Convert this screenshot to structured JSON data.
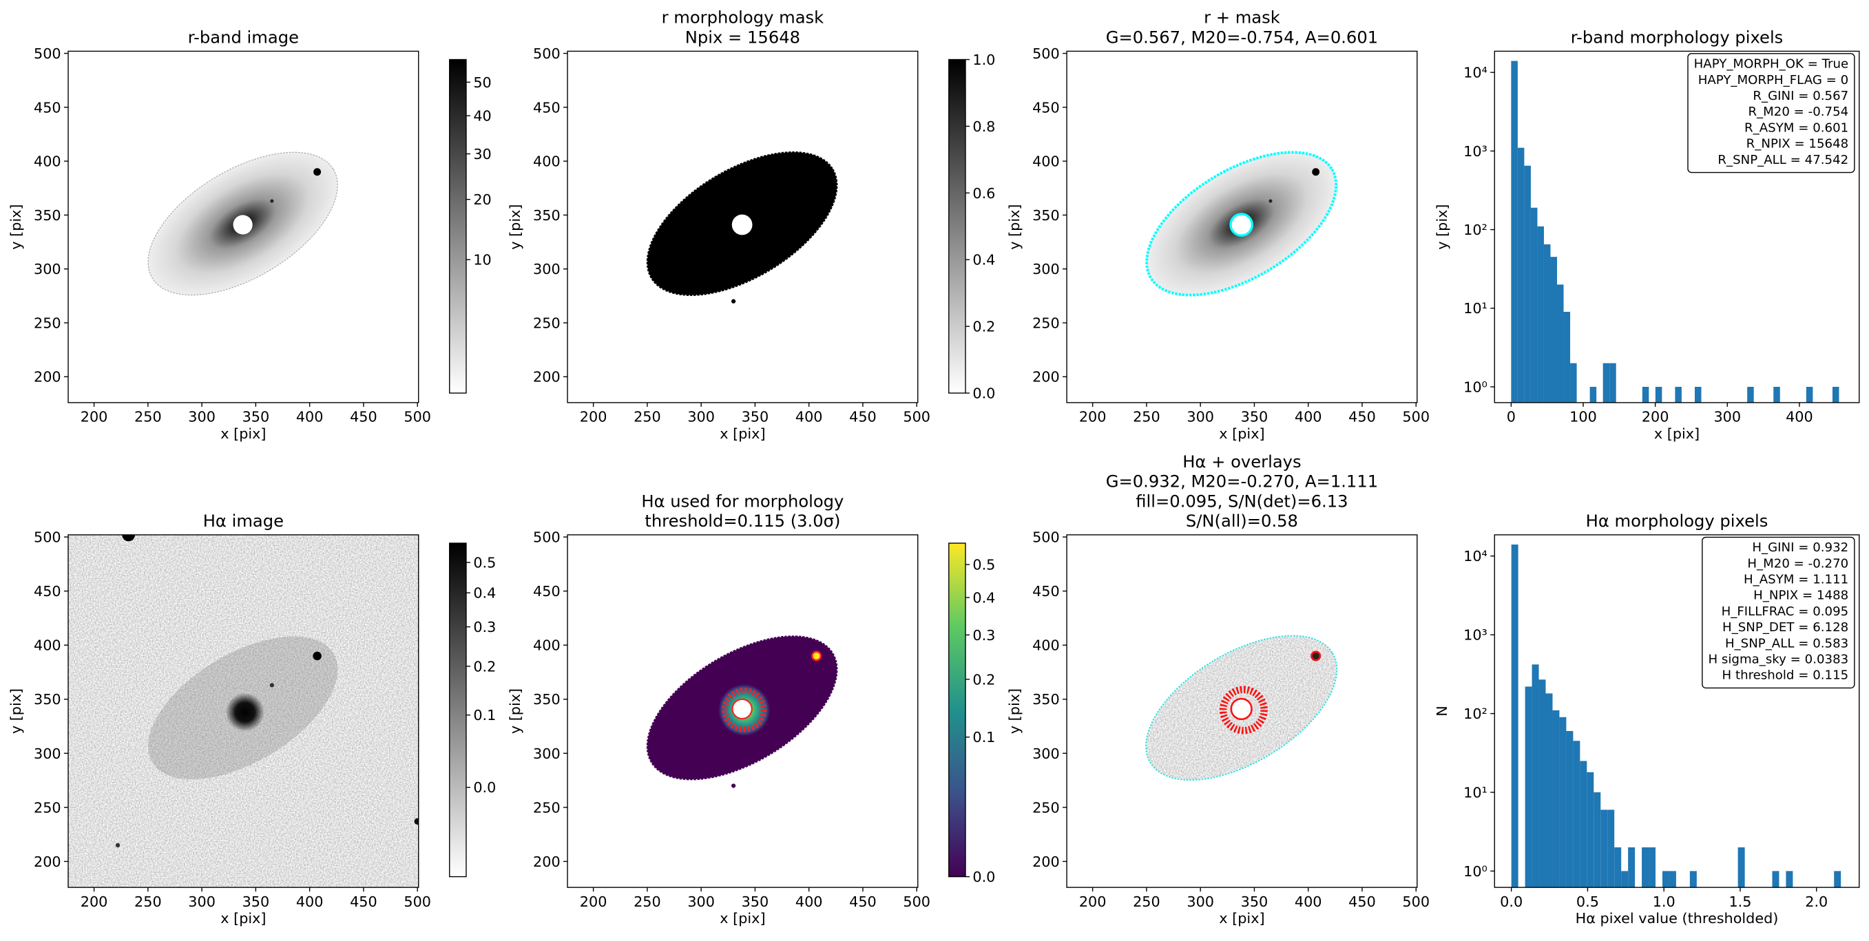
{
  "chart_data": [
    {
      "type": "image",
      "title": [
        "r-band image"
      ],
      "xlabel": "x [pix]",
      "ylabel": "y [pix]",
      "xlim": [
        176,
        501
      ],
      "ylim": [
        176,
        502
      ],
      "xticks": [
        200,
        250,
        300,
        350,
        400,
        450,
        500
      ],
      "yticks": [
        200,
        250,
        300,
        350,
        400,
        450,
        500
      ],
      "colorbar": {
        "cmap": "gray_r",
        "scale": "sqrt",
        "clim": [
          0.97,
          57.4
        ],
        "ticks": [
          10,
          20,
          30,
          40,
          50
        ]
      }
    },
    {
      "type": "image",
      "title": [
        "r morphology mask",
        "Npix = 15648"
      ],
      "xlabel": "x [pix]",
      "ylabel": "y [pix]",
      "xlim": [
        176,
        501
      ],
      "ylim": [
        176,
        502
      ],
      "xticks": [
        200,
        250,
        300,
        350,
        400,
        450,
        500
      ],
      "yticks": [
        200,
        250,
        300,
        350,
        400,
        450,
        500
      ],
      "colorbar": {
        "cmap": "gray_r",
        "scale": "linear",
        "clim": [
          0,
          1
        ],
        "ticks": [
          {
            "value": 0,
            "label": "0.0"
          },
          0.2,
          0.4,
          0.6,
          0.8,
          {
            "value": 1,
            "label": "1.0"
          }
        ]
      }
    },
    {
      "type": "image",
      "title": [
        "r + mask",
        "G=0.567, M20=-0.754, A=0.601"
      ],
      "xlabel": "x [pix]",
      "ylabel": "y [pix]",
      "xlim": [
        176,
        501
      ],
      "ylim": [
        176,
        502
      ],
      "xticks": [
        200,
        250,
        300,
        350,
        400,
        450,
        500
      ],
      "yticks": [
        200,
        250,
        300,
        350,
        400,
        450,
        500
      ]
    },
    {
      "type": "histogram",
      "title": [
        "r-band morphology pixels"
      ],
      "xlabel": "x [pix]",
      "ylabel": "y [pix]",
      "xlim": [
        -23,
        483
      ],
      "ylim": [
        0.63,
        18600
      ],
      "yscale": "log",
      "color": "#1f77b4",
      "xticks": [
        0,
        100,
        200,
        300,
        400
      ],
      "yticks": [
        {
          "value": 1,
          "label": "10⁰"
        },
        {
          "value": 10,
          "label": "10¹"
        },
        {
          "value": 100,
          "label": "10²"
        },
        {
          "value": 1000,
          "label": "10³"
        },
        {
          "value": 10000,
          "label": "10⁴"
        }
      ],
      "bins": [
        0,
        9.1,
        18.2,
        27.3,
        36.4,
        45.5,
        54.6,
        63.7,
        72.8,
        81.9,
        91,
        100.1,
        109.2,
        118.3,
        127.4,
        136.5,
        145.6,
        154.7,
        163.8,
        172.9,
        182,
        191.1,
        200.2,
        209.3,
        218.4,
        227.5,
        236.6,
        245.7,
        254.8,
        263.9,
        273,
        282.1,
        291.2,
        300.3,
        309.4,
        318.5,
        327.6,
        336.7,
        345.8,
        354.9,
        364,
        373.1,
        382.2,
        391.3,
        400.4,
        409.5,
        418.6,
        427.7,
        436.8,
        445.9,
        455
      ],
      "counts": [
        14000,
        1100,
        650,
        190,
        110,
        65,
        45,
        20,
        9,
        2,
        0,
        0,
        1,
        0,
        2,
        2,
        0,
        0,
        0,
        0,
        1,
        0,
        1,
        0,
        0,
        1,
        0,
        0,
        1,
        0,
        0,
        0,
        0,
        0,
        0,
        0,
        1,
        0,
        0,
        0,
        1,
        0,
        0,
        0,
        0,
        1,
        0,
        0,
        0,
        1
      ],
      "annotation": [
        "HAPY_MORPH_OK = True",
        "HAPY_MORPH_FLAG = 0",
        "R_GINI = 0.567",
        "R_M20 = -0.754",
        "R_ASYM = 0.601",
        "R_NPIX = 15648",
        "R_SNP_ALL = 47.542"
      ]
    },
    {
      "type": "image",
      "title": [
        "Hα image"
      ],
      "xlabel": "x [pix]",
      "ylabel": "y [pix]",
      "xlim": [
        176,
        501
      ],
      "ylim": [
        176,
        502
      ],
      "xticks": [
        200,
        250,
        300,
        350,
        400,
        450,
        500
      ],
      "yticks": [
        200,
        250,
        300,
        350,
        400,
        450,
        500
      ],
      "colorbar": {
        "cmap": "gray_r",
        "scale": "sqrt",
        "clim": [
          -0.044,
          0.569
        ],
        "ticks": [
          {
            "value": 0,
            "label": "0.0"
          },
          0.1,
          0.2,
          0.3,
          0.4,
          0.5
        ]
      }
    },
    {
      "type": "image",
      "title": [
        "Hα used for morphology",
        "threshold=0.115 (3.0σ)"
      ],
      "xlabel": "x [pix]",
      "ylabel": "y [pix]",
      "xlim": [
        176,
        501
      ],
      "ylim": [
        176,
        502
      ],
      "xticks": [
        200,
        250,
        300,
        350,
        400,
        450,
        500
      ],
      "yticks": [
        200,
        250,
        300,
        350,
        400,
        450,
        500
      ],
      "colorbar": {
        "cmap": "viridis",
        "scale": "sqrt",
        "clim": [
          0,
          0.571
        ],
        "ticks": [
          {
            "value": 0,
            "label": "0.0"
          },
          0.1,
          0.2,
          0.3,
          0.4,
          0.5
        ]
      }
    },
    {
      "type": "image",
      "title": [
        "Hα + overlays",
        "G=0.932, M20=-0.270, A=1.111",
        "fill=0.095, S/N(det)=6.13",
        "S/N(all)=0.58"
      ],
      "xlabel": "x [pix]",
      "ylabel": "y [pix]",
      "xlim": [
        176,
        501
      ],
      "ylim": [
        176,
        502
      ],
      "xticks": [
        200,
        250,
        300,
        350,
        400,
        450,
        500
      ],
      "yticks": [
        200,
        250,
        300,
        350,
        400,
        450,
        500
      ]
    },
    {
      "type": "histogram",
      "title": [
        "Hα morphology pixels"
      ],
      "xlabel": "Hα pixel value (thresholded)",
      "ylabel": "N",
      "xlim": [
        -0.11,
        2.28
      ],
      "ylim": [
        0.62,
        18600
      ],
      "yscale": "log",
      "color": "#1f77b4",
      "xticks": [
        {
          "value": 0,
          "label": "0.0"
        },
        0.5,
        {
          "value": 1,
          "label": "1.0"
        },
        1.5,
        {
          "value": 2,
          "label": "2.0"
        }
      ],
      "yticks": [
        {
          "value": 1,
          "label": "10⁰"
        },
        {
          "value": 10,
          "label": "10¹"
        },
        {
          "value": 100,
          "label": "10²"
        },
        {
          "value": 1000,
          "label": "10³"
        },
        {
          "value": 10000,
          "label": "10⁴"
        }
      ],
      "bins": [
        0,
        0.045,
        0.09,
        0.135,
        0.18,
        0.225,
        0.27,
        0.315,
        0.36,
        0.405,
        0.45,
        0.495,
        0.54,
        0.585,
        0.63,
        0.675,
        0.72,
        0.765,
        0.81,
        0.855,
        0.9,
        0.945,
        0.99,
        1.035,
        1.08,
        1.125,
        1.17,
        1.215,
        1.26,
        1.305,
        1.35,
        1.395,
        1.44,
        1.485,
        1.53,
        1.575,
        1.62,
        1.665,
        1.71,
        1.755,
        1.8,
        1.845,
        1.89,
        1.935,
        1.98,
        2.025,
        2.07,
        2.115,
        2.16
      ],
      "counts": [
        14000,
        0,
        220,
        420,
        270,
        180,
        110,
        90,
        60,
        45,
        25,
        18,
        10,
        6,
        6,
        2,
        1,
        2,
        0,
        2,
        2,
        0,
        1,
        1,
        0,
        0,
        1,
        0,
        0,
        0,
        0,
        0,
        0,
        2,
        0,
        0,
        0,
        0,
        1,
        0,
        1,
        0,
        0,
        0,
        0,
        0,
        0,
        1
      ],
      "annotation": [
        "H_GINI = 0.932",
        "H_M20 = -0.270",
        "H_ASYM = 1.111",
        "H_NPIX = 1488",
        "H_FILLFRAC = 0.095",
        "H_SNP_DET = 6.128",
        "H_SNP_ALL = 0.583",
        "H sigma_sky = 0.0383",
        "H threshold = 0.115"
      ]
    }
  ]
}
